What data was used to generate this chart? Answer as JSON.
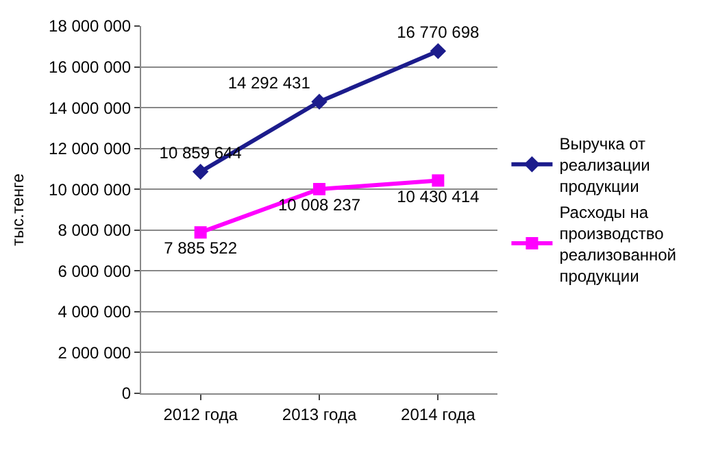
{
  "chart_data": {
    "type": "line",
    "ylabel": "тыс.тенге",
    "categories": [
      "2012 года",
      "2013 года",
      "2014 года"
    ],
    "series": [
      {
        "name": "Выручка от реализации продукции",
        "color": "#1c1c8c",
        "marker": "diamond",
        "values": [
          10859644,
          14292431,
          16770698
        ],
        "value_labels": [
          "10 859 644",
          "14 292 431",
          "16 770 698"
        ]
      },
      {
        "name": "Расходы на производство реализованной продукции",
        "color": "#ff00ff",
        "marker": "square",
        "values": [
          7885522,
          10008237,
          10430414
        ],
        "value_labels": [
          "7 885 522",
          "10 008 237",
          "10 430 414"
        ]
      }
    ],
    "ylim": [
      0,
      18000000
    ],
    "yticks": [
      {
        "value": 0,
        "label": "0"
      },
      {
        "value": 2000000,
        "label": "2 000 000"
      },
      {
        "value": 4000000,
        "label": "4 000 000"
      },
      {
        "value": 6000000,
        "label": "6 000 000"
      },
      {
        "value": 8000000,
        "label": "8 000 000"
      },
      {
        "value": 10000000,
        "label": "10 000 000"
      },
      {
        "value": 12000000,
        "label": "12 000 000"
      },
      {
        "value": 14000000,
        "label": "14 000 000"
      },
      {
        "value": 16000000,
        "label": "16 000 000"
      },
      {
        "value": 18000000,
        "label": "18 000 000"
      }
    ],
    "grid": "y",
    "legend": "right"
  }
}
